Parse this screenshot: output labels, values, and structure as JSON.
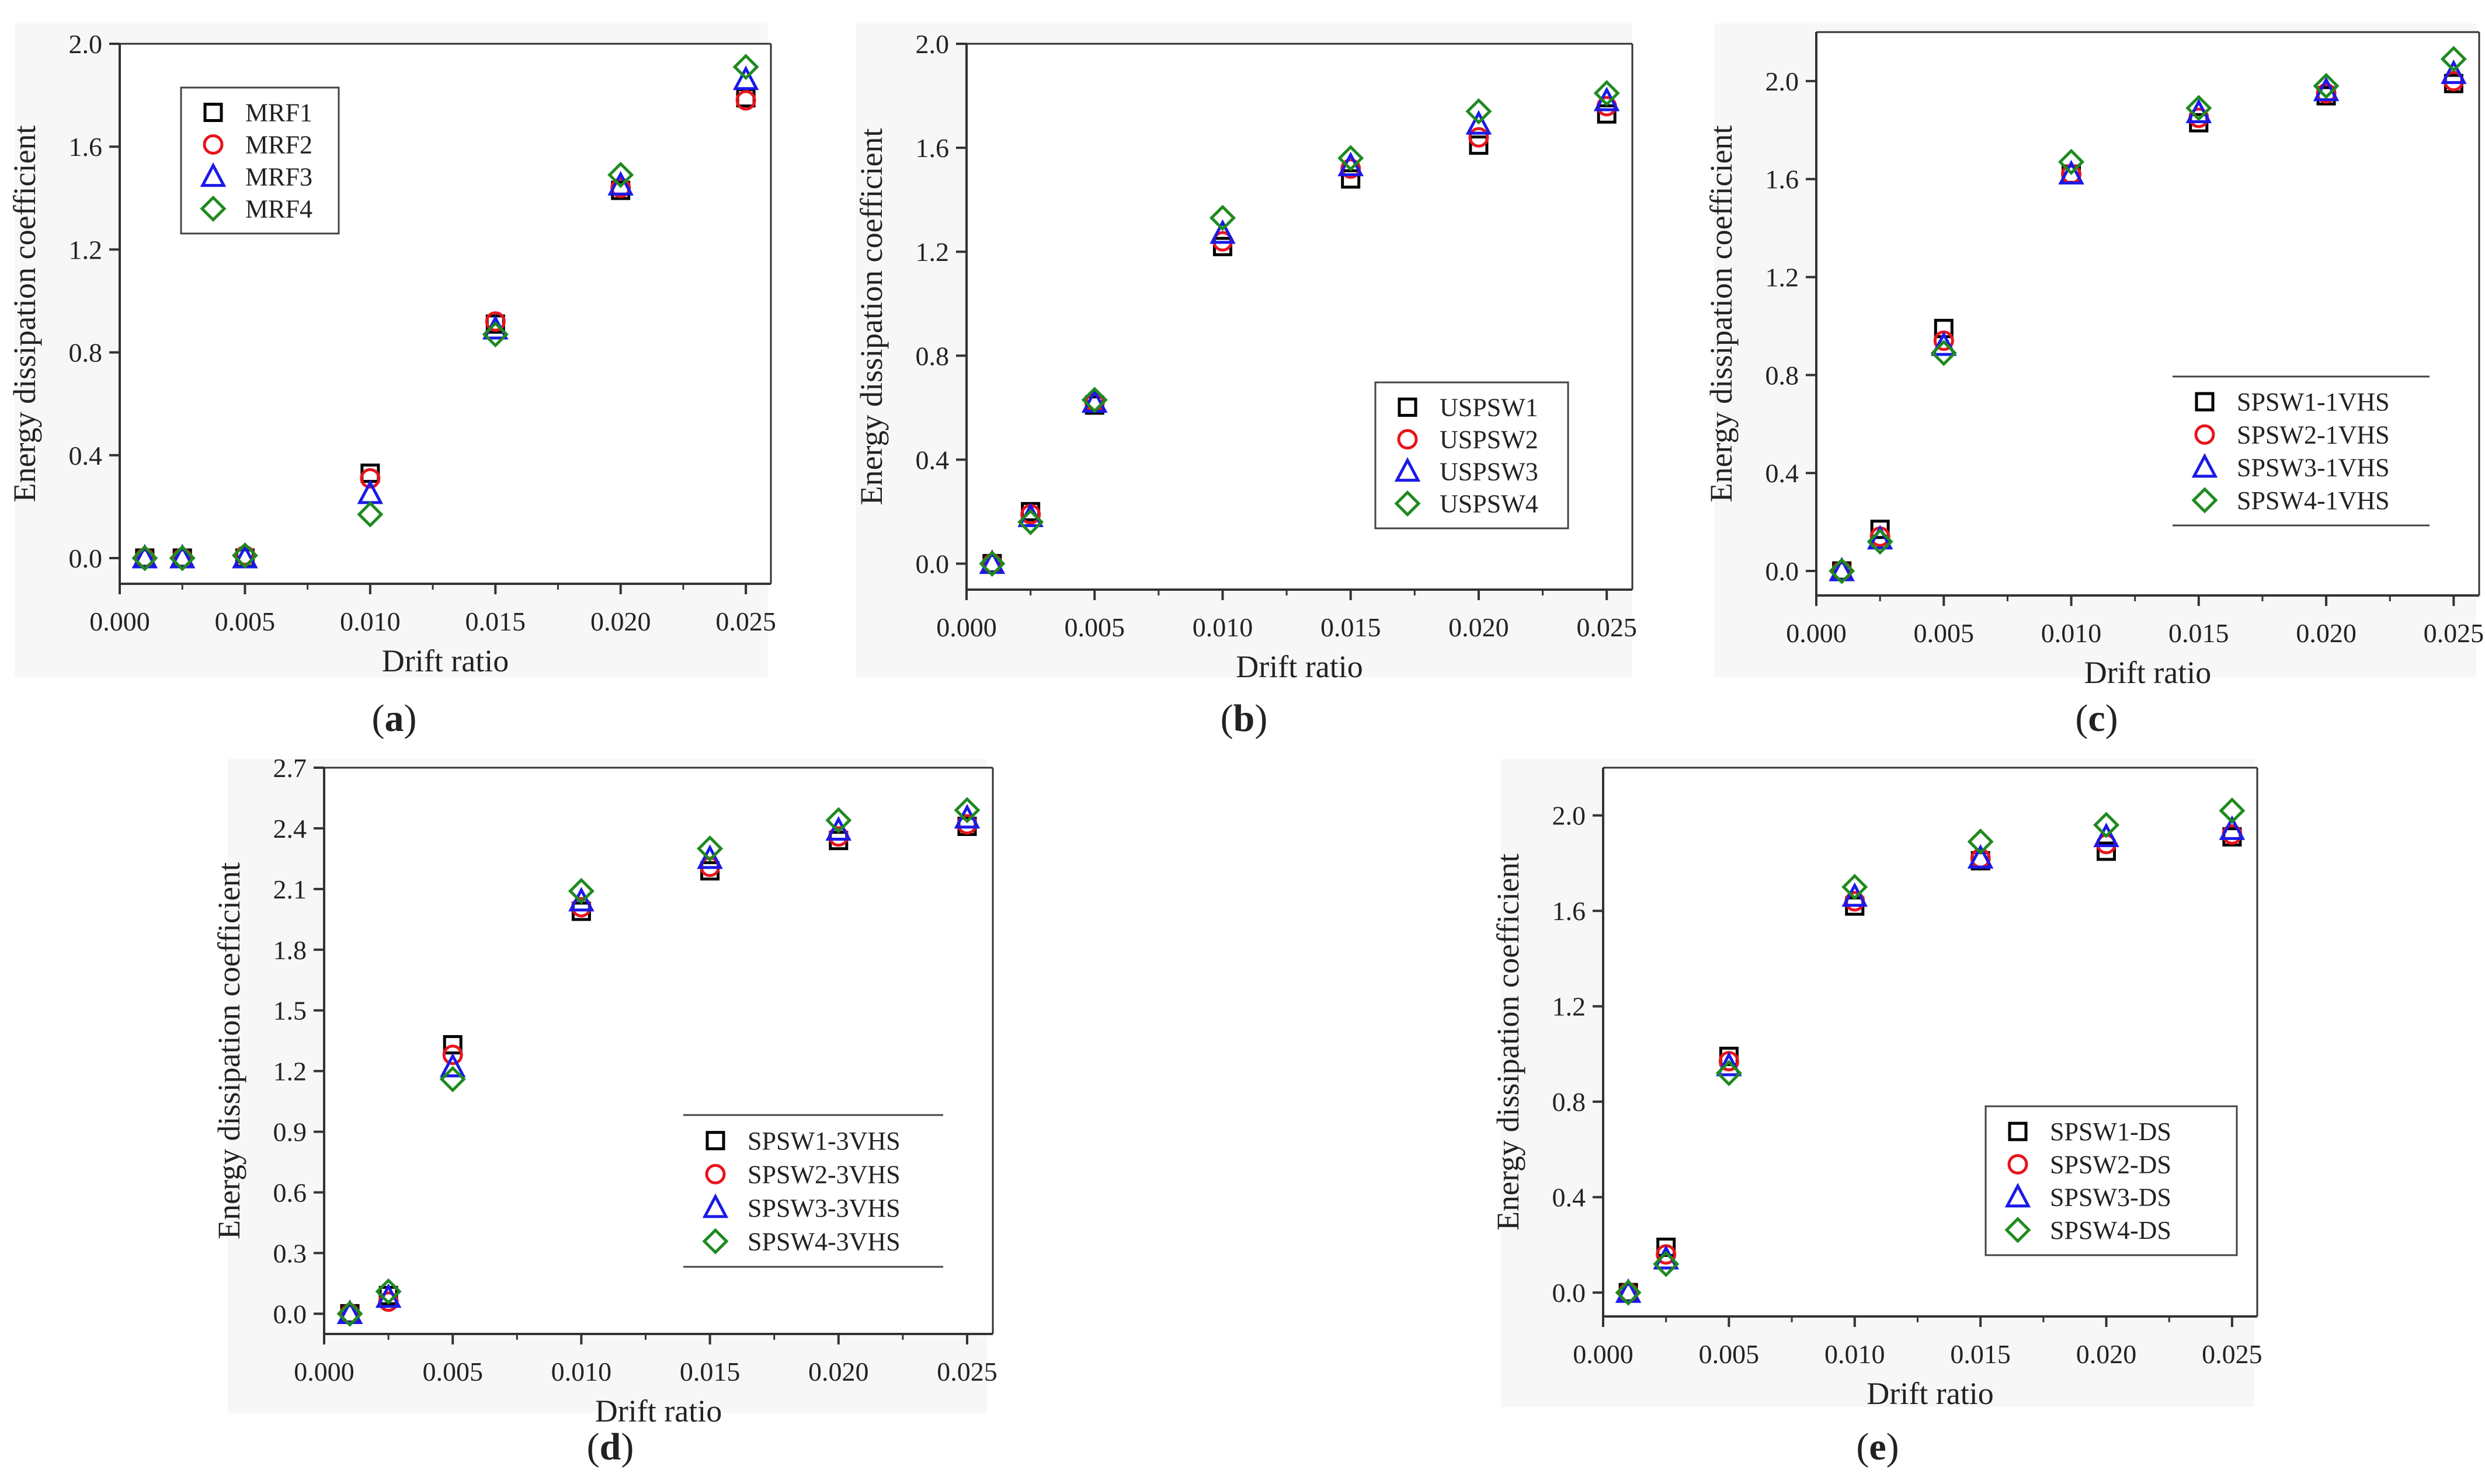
{
  "figure": {
    "colors": {
      "axis": "#333333",
      "panel_bg": "#f7f7f7",
      "series": [
        "#000000",
        "#e8141b",
        "#1a1ae8",
        "#1f8a1f"
      ]
    },
    "markers": [
      "square",
      "circle",
      "triangle",
      "diamond"
    ]
  },
  "chart_data": [
    {
      "type": "scatter",
      "caption": {
        "open": "(",
        "letter": "a",
        "close": ")"
      },
      "xlabel": "Drift ratio",
      "ylabel": "Energy dissipation coefficient",
      "xlim": [
        0,
        0.026
      ],
      "ylim": [
        -0.1,
        2.0
      ],
      "xticks": [
        "0.000",
        "0.005",
        "0.010",
        "0.015",
        "0.020",
        "0.025"
      ],
      "xtick_values": [
        0,
        0.005,
        0.01,
        0.015,
        0.02,
        0.025
      ],
      "yticks": [
        "0.0",
        "0.4",
        "0.8",
        "1.2",
        "1.6",
        "2.0"
      ],
      "ytick_values": [
        0,
        0.4,
        0.8,
        1.2,
        1.6,
        2.0
      ],
      "legend_position": "top-left",
      "x": [
        0.001,
        0.0025,
        0.005,
        0.01,
        0.015,
        0.02,
        0.025
      ],
      "series": [
        {
          "name": "MRF1",
          "values": [
            0.0,
            0.0,
            0.0,
            0.33,
            0.91,
            1.43,
            1.79
          ]
        },
        {
          "name": "MRF2",
          "values": [
            0.0,
            0.0,
            0.01,
            0.31,
            0.92,
            1.44,
            1.78
          ]
        },
        {
          "name": "MRF3",
          "values": [
            0.0,
            0.0,
            0.0,
            0.25,
            0.89,
            1.45,
            1.86
          ]
        },
        {
          "name": "MRF4",
          "values": [
            0.0,
            0.0,
            0.01,
            0.17,
            0.87,
            1.49,
            1.91
          ]
        }
      ]
    },
    {
      "type": "scatter",
      "caption": {
        "open": "(",
        "letter": "b",
        "close": ")"
      },
      "xlabel": "Drift ratio",
      "ylabel": "Energy dissipation coefficient",
      "xlim": [
        0,
        0.026
      ],
      "ylim": [
        -0.1,
        2.0
      ],
      "xticks": [
        "0.000",
        "0.005",
        "0.010",
        "0.015",
        "0.020",
        "0.025"
      ],
      "xtick_values": [
        0,
        0.005,
        0.01,
        0.015,
        0.02,
        0.025
      ],
      "yticks": [
        "0.0",
        "0.4",
        "0.8",
        "1.2",
        "1.6",
        "2.0"
      ],
      "ytick_values": [
        0,
        0.4,
        0.8,
        1.2,
        1.6,
        2.0
      ],
      "legend_position": "bottom-right",
      "x": [
        0.001,
        0.0025,
        0.005,
        0.01,
        0.015,
        0.02,
        0.025
      ],
      "series": [
        {
          "name": "USPSW1",
          "values": [
            0.0,
            0.2,
            0.61,
            1.22,
            1.48,
            1.61,
            1.73
          ]
        },
        {
          "name": "USPSW2",
          "values": [
            0.0,
            0.19,
            0.62,
            1.24,
            1.52,
            1.64,
            1.76
          ]
        },
        {
          "name": "USPSW3",
          "values": [
            0.0,
            0.18,
            0.62,
            1.27,
            1.53,
            1.69,
            1.78
          ]
        },
        {
          "name": "USPSW4",
          "values": [
            0.0,
            0.16,
            0.63,
            1.33,
            1.56,
            1.74,
            1.81
          ]
        }
      ]
    },
    {
      "type": "scatter",
      "caption": {
        "open": "(",
        "letter": "c",
        "close": ")"
      },
      "xlabel": "Drift ratio",
      "ylabel": "Energy dissipation coefficient",
      "xlim": [
        0,
        0.026
      ],
      "ylim": [
        -0.1,
        2.2
      ],
      "xticks": [
        "0.000",
        "0.005",
        "0.010",
        "0.015",
        "0.020",
        "0.025"
      ],
      "xtick_values": [
        0,
        0.005,
        0.01,
        0.015,
        0.02,
        0.025
      ],
      "yticks": [
        "0.0",
        "0.4",
        "0.8",
        "1.2",
        "1.6",
        "2.0"
      ],
      "ytick_values": [
        0,
        0.4,
        0.8,
        1.2,
        1.6,
        2.0
      ],
      "legend_position": "bottom-right",
      "x": [
        0.001,
        0.0025,
        0.005,
        0.01,
        0.015,
        0.02,
        0.025
      ],
      "series": [
        {
          "name": "SPSW1-1VHS",
          "values": [
            0.0,
            0.17,
            0.99,
            1.62,
            1.83,
            1.94,
            1.99
          ]
        },
        {
          "name": "SPSW2-1VHS",
          "values": [
            0.0,
            0.14,
            0.94,
            1.62,
            1.85,
            1.95,
            2.0
          ]
        },
        {
          "name": "SPSW3-1VHS",
          "values": [
            0.0,
            0.13,
            0.92,
            1.62,
            1.87,
            1.96,
            2.03
          ]
        },
        {
          "name": "SPSW4-1VHS",
          "values": [
            0.0,
            0.12,
            0.89,
            1.67,
            1.89,
            1.98,
            2.09
          ]
        }
      ]
    },
    {
      "type": "scatter",
      "caption": {
        "open": "(",
        "letter": "d",
        "close": ")"
      },
      "xlabel": "Drift ratio",
      "ylabel": "Energy dissipation coefficient",
      "xlim": [
        0,
        0.026
      ],
      "ylim": [
        -0.1,
        2.7
      ],
      "xticks": [
        "0.000",
        "0.005",
        "0.010",
        "0.015",
        "0.020",
        "0.025"
      ],
      "xtick_values": [
        0,
        0.005,
        0.01,
        0.015,
        0.02,
        0.025
      ],
      "yticks": [
        "0.0",
        "0.3",
        "0.6",
        "0.9",
        "1.2",
        "1.5",
        "1.8",
        "2.1",
        "2.4",
        "2.7"
      ],
      "ytick_values": [
        0,
        0.3,
        0.6,
        0.9,
        1.2,
        1.5,
        1.8,
        2.1,
        2.4,
        2.7
      ],
      "legend_position": "bottom-right",
      "x": [
        0.001,
        0.0025,
        0.005,
        0.01,
        0.015,
        0.02,
        0.025
      ],
      "series": [
        {
          "name": "SPSW1-3VHS",
          "values": [
            0.0,
            0.09,
            1.33,
            1.99,
            2.19,
            2.34,
            2.41
          ]
        },
        {
          "name": "SPSW2-3VHS",
          "values": [
            0.0,
            0.06,
            1.28,
            2.01,
            2.21,
            2.36,
            2.42
          ]
        },
        {
          "name": "SPSW3-3VHS",
          "values": [
            0.0,
            0.08,
            1.22,
            2.04,
            2.25,
            2.39,
            2.45
          ]
        },
        {
          "name": "SPSW4-3VHS",
          "values": [
            0.0,
            0.11,
            1.16,
            2.09,
            2.3,
            2.44,
            2.49
          ]
        }
      ]
    },
    {
      "type": "scatter",
      "caption": {
        "open": "(",
        "letter": "e",
        "close": ")"
      },
      "xlabel": "Drift ratio",
      "ylabel": "Energy dissipation coefficient",
      "xlim": [
        0,
        0.026
      ],
      "ylim": [
        -0.1,
        2.2
      ],
      "xticks": [
        "0.000",
        "0.005",
        "0.010",
        "0.015",
        "0.020",
        "0.025"
      ],
      "xtick_values": [
        0,
        0.005,
        0.01,
        0.015,
        0.02,
        0.025
      ],
      "yticks": [
        "0.0",
        "0.4",
        "0.8",
        "1.2",
        "1.6",
        "2.0"
      ],
      "ytick_values": [
        0,
        0.4,
        0.8,
        1.2,
        1.6,
        2.0
      ],
      "legend_position": "bottom-right",
      "x": [
        0.001,
        0.0025,
        0.005,
        0.01,
        0.015,
        0.02,
        0.025
      ],
      "series": [
        {
          "name": "SPSW1-DS",
          "values": [
            0.0,
            0.19,
            0.99,
            1.62,
            1.81,
            1.85,
            1.91
          ]
        },
        {
          "name": "SPSW2-DS",
          "values": [
            0.0,
            0.16,
            0.97,
            1.64,
            1.82,
            1.88,
            1.92
          ]
        },
        {
          "name": "SPSW3-DS",
          "values": [
            0.0,
            0.14,
            0.95,
            1.66,
            1.82,
            1.91,
            1.94
          ]
        },
        {
          "name": "SPSW4-DS",
          "values": [
            0.0,
            0.12,
            0.92,
            1.7,
            1.89,
            1.96,
            2.02
          ]
        }
      ]
    }
  ]
}
